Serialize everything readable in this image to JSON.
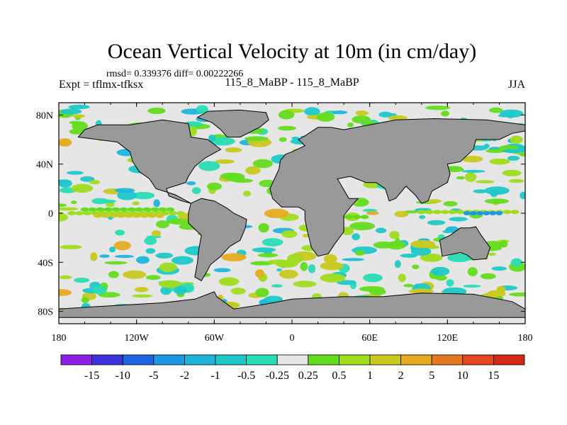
{
  "chart_data": {
    "type": "heatmap",
    "title": "Ocean Vertical Velocity at 10m (in cm/day)",
    "subtitle_stats": "rmsd= 0.339376 diff= 0.00222266",
    "left_label": "Expt = tflmx-tfksx",
    "center_label": "115_8_MaBP - 115_8_MaBP",
    "right_label": "JJA",
    "x_axis": {
      "range": [
        -180,
        180
      ],
      "tick_values": [
        -180,
        -120,
        -60,
        0,
        60,
        120,
        180
      ],
      "tick_labels": [
        "180",
        "120W",
        "60W",
        "0",
        "60E",
        "120E",
        "180"
      ]
    },
    "y_axis": {
      "range": [
        -90,
        90
      ],
      "tick_values": [
        80,
        40,
        0,
        -40,
        -80
      ],
      "tick_labels": [
        "80N",
        "40N",
        "0",
        "40S",
        "80S"
      ]
    },
    "colorbar": {
      "labels": [
        "-15",
        "-10",
        "-5",
        "-2",
        "-1",
        "-0.5",
        "-0.25",
        "0.25",
        "0.5",
        "1",
        "2",
        "5",
        "10",
        "15"
      ],
      "colors": [
        "#8c1ee6",
        "#3c32dc",
        "#1e64e6",
        "#1e96e6",
        "#1eb4dc",
        "#1ec8c8",
        "#28dcb4",
        "#e6e6e6",
        "#64dc1e",
        "#a0dc1e",
        "#c8c81e",
        "#e6aa1e",
        "#e6781e",
        "#e6461e",
        "#d22814"
      ]
    },
    "land_color": "#999999",
    "background_color": "#e6e6e6",
    "land_polygons": [
      {
        "name": "north-america",
        "lonlat": [
          [
            -160,
            68
          ],
          [
            -150,
            72
          ],
          [
            -125,
            72
          ],
          [
            -100,
            76
          ],
          [
            -80,
            73
          ],
          [
            -78,
            62
          ],
          [
            -65,
            60
          ],
          [
            -55,
            52
          ],
          [
            -67,
            45
          ],
          [
            -75,
            38
          ],
          [
            -80,
            30
          ],
          [
            -82,
            25
          ],
          [
            -97,
            20
          ],
          [
            -95,
            14
          ],
          [
            -85,
            10
          ],
          [
            -78,
            8
          ],
          [
            -90,
            15
          ],
          [
            -105,
            20
          ],
          [
            -110,
            28
          ],
          [
            -118,
            34
          ],
          [
            -123,
            42
          ],
          [
            -125,
            50
          ],
          [
            -135,
            58
          ],
          [
            -150,
            60
          ],
          [
            -165,
            62
          ]
        ]
      },
      {
        "name": "greenland",
        "lonlat": [
          [
            -73,
            78
          ],
          [
            -65,
            83
          ],
          [
            -40,
            84
          ],
          [
            -20,
            82
          ],
          [
            -18,
            76
          ],
          [
            -25,
            70
          ],
          [
            -40,
            62
          ],
          [
            -50,
            62
          ],
          [
            -55,
            68
          ],
          [
            -62,
            74
          ]
        ]
      },
      {
        "name": "south-america",
        "lonlat": [
          [
            -78,
            8
          ],
          [
            -70,
            12
          ],
          [
            -60,
            10
          ],
          [
            -50,
            4
          ],
          [
            -45,
            0
          ],
          [
            -35,
            -5
          ],
          [
            -36,
            -12
          ],
          [
            -40,
            -22
          ],
          [
            -48,
            -27
          ],
          [
            -55,
            -35
          ],
          [
            -63,
            -42
          ],
          [
            -66,
            -48
          ],
          [
            -70,
            -55
          ],
          [
            -75,
            -52
          ],
          [
            -73,
            -40
          ],
          [
            -72,
            -30
          ],
          [
            -70,
            -18
          ],
          [
            -80,
            -8
          ],
          [
            -80,
            0
          ]
        ]
      },
      {
        "name": "eurasia-africa",
        "lonlat": [
          [
            -10,
            36
          ],
          [
            -17,
            20
          ],
          [
            -15,
            12
          ],
          [
            -8,
            5
          ],
          [
            5,
            5
          ],
          [
            10,
            2
          ],
          [
            10,
            -5
          ],
          [
            12,
            -15
          ],
          [
            15,
            -28
          ],
          [
            20,
            -35
          ],
          [
            28,
            -33
          ],
          [
            33,
            -25
          ],
          [
            40,
            -15
          ],
          [
            40,
            -2
          ],
          [
            45,
            5
          ],
          [
            51,
            12
          ],
          [
            44,
            12
          ],
          [
            35,
            28
          ],
          [
            45,
            30
          ],
          [
            50,
            28
          ],
          [
            57,
            25
          ],
          [
            65,
            25
          ],
          [
            72,
            20
          ],
          [
            75,
            10
          ],
          [
            80,
            12
          ],
          [
            88,
            22
          ],
          [
            95,
            15
          ],
          [
            100,
            8
          ],
          [
            105,
            10
          ],
          [
            108,
            18
          ],
          [
            120,
            25
          ],
          [
            122,
            32
          ],
          [
            120,
            40
          ],
          [
            130,
            42
          ],
          [
            140,
            52
          ],
          [
            142,
            60
          ],
          [
            160,
            60
          ],
          [
            170,
            65
          ],
          [
            180,
            67
          ],
          [
            180,
            72
          ],
          [
            150,
            76
          ],
          [
            110,
            77
          ],
          [
            80,
            76
          ],
          [
            60,
            72
          ],
          [
            40,
            68
          ],
          [
            30,
            70
          ],
          [
            20,
            70
          ],
          [
            10,
            63
          ],
          [
            5,
            60
          ],
          [
            10,
            55
          ],
          [
            0,
            50
          ],
          [
            -5,
            48
          ],
          [
            -9,
            43
          ]
        ]
      },
      {
        "name": "australia",
        "lonlat": [
          [
            114,
            -22
          ],
          [
            122,
            -18
          ],
          [
            130,
            -12
          ],
          [
            137,
            -12
          ],
          [
            142,
            -11
          ],
          [
            146,
            -18
          ],
          [
            153,
            -28
          ],
          [
            150,
            -37
          ],
          [
            140,
            -38
          ],
          [
            135,
            -34
          ],
          [
            130,
            -32
          ],
          [
            116,
            -35
          ]
        ]
      },
      {
        "name": "antarctica",
        "lonlat": [
          [
            -180,
            -78
          ],
          [
            -150,
            -76
          ],
          [
            -100,
            -73
          ],
          [
            -75,
            -70
          ],
          [
            -60,
            -64
          ],
          [
            -58,
            -68
          ],
          [
            -45,
            -78
          ],
          [
            -20,
            -74
          ],
          [
            0,
            -70
          ],
          [
            40,
            -68
          ],
          [
            70,
            -68
          ],
          [
            100,
            -65
          ],
          [
            140,
            -66
          ],
          [
            170,
            -72
          ],
          [
            180,
            -78
          ],
          [
            180,
            -85
          ],
          [
            -180,
            -85
          ]
        ]
      }
    ]
  }
}
